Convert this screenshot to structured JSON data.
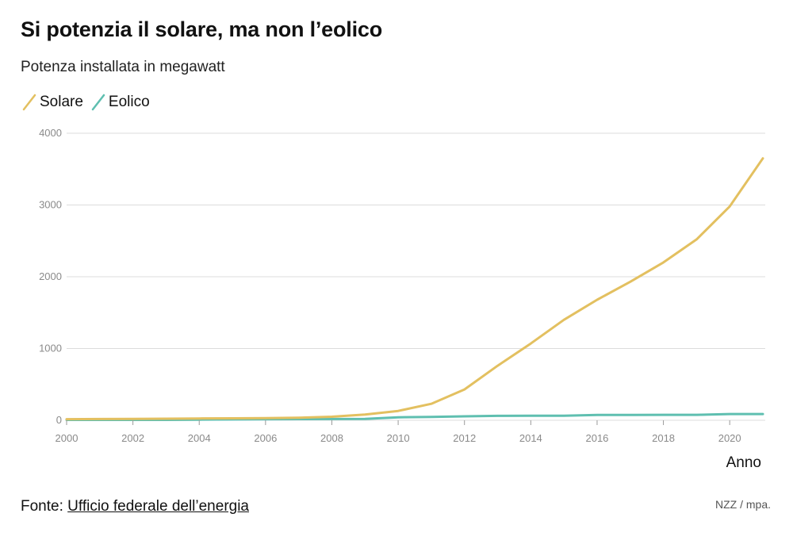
{
  "header": {
    "title": "Si potenzia il solare, ma non l’eolico",
    "subtitle": "Potenza installata in megawatt"
  },
  "footer": {
    "source_prefix": "Fonte:",
    "source_link": "Ufficio federale dell’energia",
    "credit": "NZZ / mpa."
  },
  "colors": {
    "solar": "#e3c060",
    "wind": "#5fbfb0",
    "grid": "#dcdcdc",
    "axis_text": "#8a8a8a"
  },
  "chart_data": {
    "type": "line",
    "title": "Si potenzia il solare, ma non l’eolico",
    "subtitle": "Potenza installata in megawatt",
    "xlabel": "Anno",
    "ylabel": "",
    "x": [
      2000,
      2001,
      2002,
      2003,
      2004,
      2005,
      2006,
      2007,
      2008,
      2009,
      2010,
      2011,
      2012,
      2013,
      2014,
      2015,
      2016,
      2017,
      2018,
      2019,
      2020,
      2021
    ],
    "series": [
      {
        "name": "Solare",
        "color": "#e3c060",
        "values": [
          15,
          18,
          20,
          22,
          25,
          28,
          30,
          35,
          50,
          80,
          130,
          230,
          430,
          760,
          1070,
          1400,
          1680,
          1930,
          2200,
          2520,
          2980,
          3650
        ]
      },
      {
        "name": "Eolico",
        "color": "#5fbfb0",
        "values": [
          5,
          5,
          5,
          6,
          9,
          12,
          15,
          17,
          18,
          19,
          42,
          48,
          55,
          62,
          63,
          63,
          75,
          75,
          76,
          76,
          87,
          87
        ]
      }
    ],
    "xlim": [
      2000,
      2021
    ],
    "ylim": [
      0,
      4000
    ],
    "yticks": [
      0,
      1000,
      2000,
      3000,
      4000
    ],
    "xticks": [
      2000,
      2002,
      2004,
      2006,
      2008,
      2010,
      2012,
      2014,
      2016,
      2018,
      2020
    ],
    "grid": true,
    "legend": "top-left"
  }
}
